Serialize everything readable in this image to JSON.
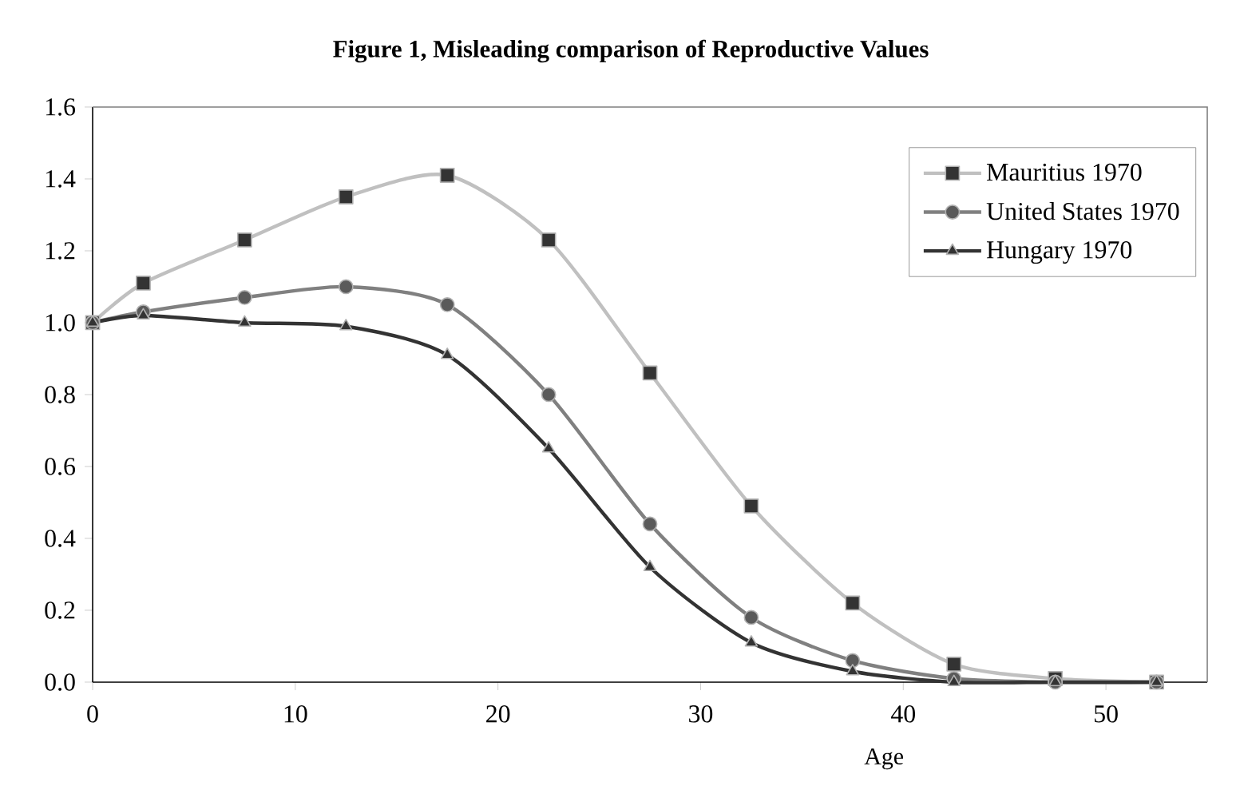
{
  "chart_data": {
    "type": "line",
    "title": "Figure 1, Misleading comparison of Reproductive Values",
    "xlabel": "Age",
    "x": [
      0,
      2.5,
      7.5,
      12.5,
      17.5,
      22.5,
      27.5,
      32.5,
      37.5,
      42.5,
      47.5,
      52.5
    ],
    "series": [
      {
        "name": "Mauritius 1970",
        "color": "#c0c0c0",
        "marker": "square",
        "values": [
          1.0,
          1.11,
          1.23,
          1.35,
          1.41,
          1.23,
          0.86,
          0.49,
          0.22,
          0.05,
          0.01,
          0.0
        ]
      },
      {
        "name": "United States 1970",
        "color": "#808080",
        "marker": "circle",
        "values": [
          1.0,
          1.03,
          1.07,
          1.1,
          1.05,
          0.8,
          0.44,
          0.18,
          0.06,
          0.01,
          0.0,
          0.0
        ]
      },
      {
        "name": "Hungary 1970",
        "color": "#333333",
        "marker": "triangle",
        "values": [
          1.0,
          1.02,
          1.0,
          0.99,
          0.91,
          0.65,
          0.32,
          0.11,
          0.03,
          0.0,
          0.0,
          0.0
        ]
      }
    ],
    "xlim": [
      0,
      55
    ],
    "xticks": [
      0,
      10,
      20,
      30,
      40,
      50
    ],
    "ylim": [
      0,
      1.6
    ],
    "yticks": [
      {
        "value": 0,
        "label": "0.0"
      },
      {
        "value": 0.2,
        "label": "0.2"
      },
      {
        "value": 0.4,
        "label": "0.4"
      },
      {
        "value": 0.6,
        "label": "0.6"
      },
      {
        "value": 0.8,
        "label": "0.8"
      },
      {
        "value": 1.0,
        "label": "1.0"
      },
      {
        "value": 1.2,
        "label": "1.2"
      },
      {
        "value": 1.4,
        "label": "1.4"
      },
      {
        "value": 1.6,
        "label": "1.6"
      }
    ],
    "grid": false,
    "legend": "top right",
    "line_style": "solid"
  }
}
